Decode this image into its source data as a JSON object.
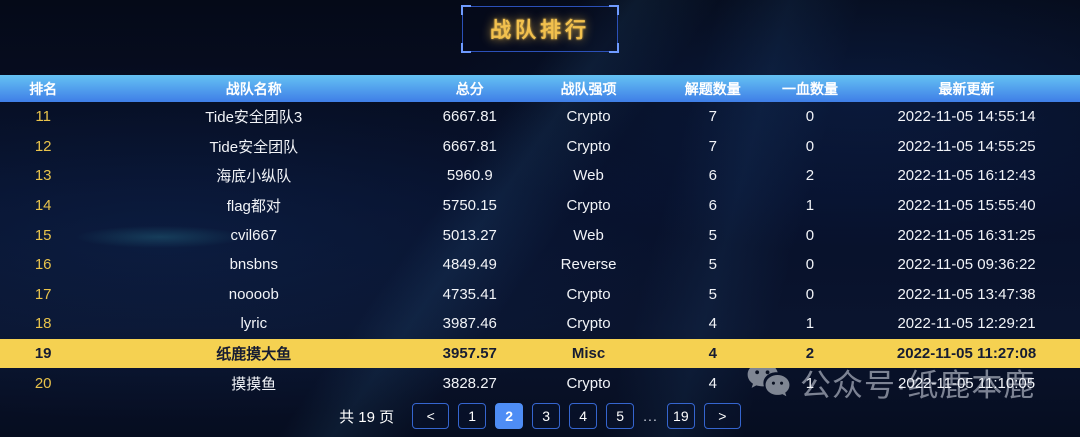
{
  "title": "战队排行",
  "table": {
    "columns": [
      "排名",
      "战队名称",
      "总分",
      "战队强项",
      "解题数量",
      "一血数量",
      "最新更新"
    ],
    "rows": [
      {
        "rank": "11",
        "name": "Tide安全团队3",
        "score": "6667.81",
        "strength": "Crypto",
        "solved": "7",
        "first_blood": "0",
        "updated": "2022-11-05 14:55:14",
        "highlight": false
      },
      {
        "rank": "12",
        "name": "Tide安全团队",
        "score": "6667.81",
        "strength": "Crypto",
        "solved": "7",
        "first_blood": "0",
        "updated": "2022-11-05 14:55:25",
        "highlight": false
      },
      {
        "rank": "13",
        "name": "海底小纵队",
        "score": "5960.9",
        "strength": "Web",
        "solved": "6",
        "first_blood": "2",
        "updated": "2022-11-05 16:12:43",
        "highlight": false
      },
      {
        "rank": "14",
        "name": "flag都对",
        "score": "5750.15",
        "strength": "Crypto",
        "solved": "6",
        "first_blood": "1",
        "updated": "2022-11-05 15:55:40",
        "highlight": false
      },
      {
        "rank": "15",
        "name": "cvil667",
        "score": "5013.27",
        "strength": "Web",
        "solved": "5",
        "first_blood": "0",
        "updated": "2022-11-05 16:31:25",
        "highlight": false
      },
      {
        "rank": "16",
        "name": "bnsbns",
        "score": "4849.49",
        "strength": "Reverse",
        "solved": "5",
        "first_blood": "0",
        "updated": "2022-11-05 09:36:22",
        "highlight": false
      },
      {
        "rank": "17",
        "name": "noooob",
        "score": "4735.41",
        "strength": "Crypto",
        "solved": "5",
        "first_blood": "0",
        "updated": "2022-11-05 13:47:38",
        "highlight": false
      },
      {
        "rank": "18",
        "name": "lyric",
        "score": "3987.46",
        "strength": "Crypto",
        "solved": "4",
        "first_blood": "1",
        "updated": "2022-11-05 12:29:21",
        "highlight": false
      },
      {
        "rank": "19",
        "name": "纸鹿摸大鱼",
        "score": "3957.57",
        "strength": "Misc",
        "solved": "4",
        "first_blood": "2",
        "updated": "2022-11-05 11:27:08",
        "highlight": true
      },
      {
        "rank": "20",
        "name": "摸摸鱼",
        "score": "3828.27",
        "strength": "Crypto",
        "solved": "4",
        "first_blood": "1",
        "updated": "2022-11-05 11:10:05",
        "highlight": false
      }
    ]
  },
  "pagination": {
    "total_label": "共 19 页",
    "prev_label": "<",
    "next_label": ">",
    "pages": [
      "1",
      "2",
      "3",
      "4",
      "5",
      "...",
      "19"
    ],
    "active_page": "2"
  },
  "watermark": {
    "icon": "wechat-icon",
    "text": "公众号·纸鹿本鹿"
  },
  "colors": {
    "background": "#060c1e",
    "header_gradient_top": "#65c2f3",
    "header_gradient_bottom": "#3f7ee7",
    "rank_gold": "#e9c34b",
    "title_gold": "#f2c14e",
    "highlight_row": "#f5d151",
    "page_active": "#4e8df5",
    "page_border": "#3565cf"
  }
}
